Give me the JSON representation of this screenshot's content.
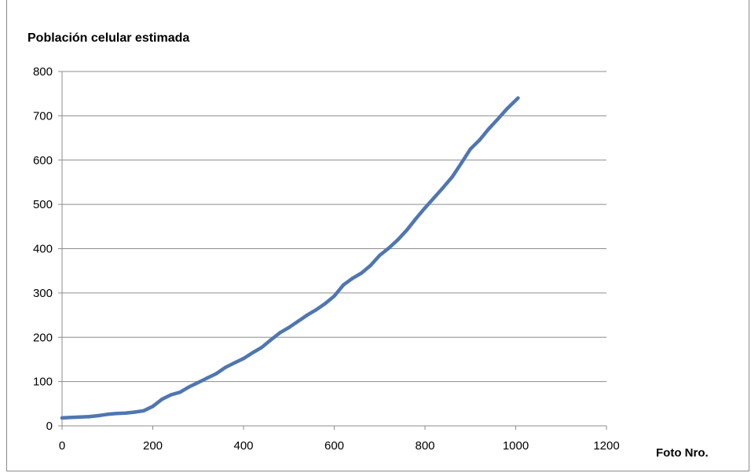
{
  "chart_data": {
    "type": "line",
    "title": "Población celular estimada",
    "xlabel": "Foto Nro.",
    "ylabel": "",
    "xlim": [
      0,
      1200
    ],
    "ylim": [
      0,
      800
    ],
    "xticks": [
      0,
      200,
      400,
      600,
      800,
      1000,
      1200
    ],
    "yticks": [
      0,
      100,
      200,
      300,
      400,
      500,
      600,
      700,
      800
    ],
    "grid": "horizontal",
    "legend": "none",
    "series_color": "#4f76b2",
    "series": [
      {
        "x": [
          0,
          20,
          40,
          60,
          80,
          100,
          120,
          140,
          160,
          180,
          200,
          220,
          240,
          260,
          280,
          300,
          320,
          340,
          360,
          380,
          400,
          420,
          440,
          460,
          480,
          500,
          520,
          540,
          560,
          580,
          600,
          620,
          640,
          660,
          680,
          700,
          720,
          740,
          760,
          780,
          800,
          820,
          840,
          860,
          880,
          900,
          920,
          940,
          960,
          980,
          1005
        ],
        "y": [
          18,
          19,
          20,
          21,
          23,
          26,
          28,
          29,
          31,
          34,
          44,
          60,
          70,
          76,
          88,
          98,
          108,
          118,
          132,
          142,
          152,
          165,
          177,
          194,
          210,
          222,
          236,
          250,
          262,
          276,
          293,
          318,
          333,
          345,
          362,
          385,
          401,
          420,
          442,
          468,
          492,
          515,
          538,
          562,
          593,
          625,
          645,
          670,
          692,
          715,
          740
        ]
      }
    ]
  }
}
